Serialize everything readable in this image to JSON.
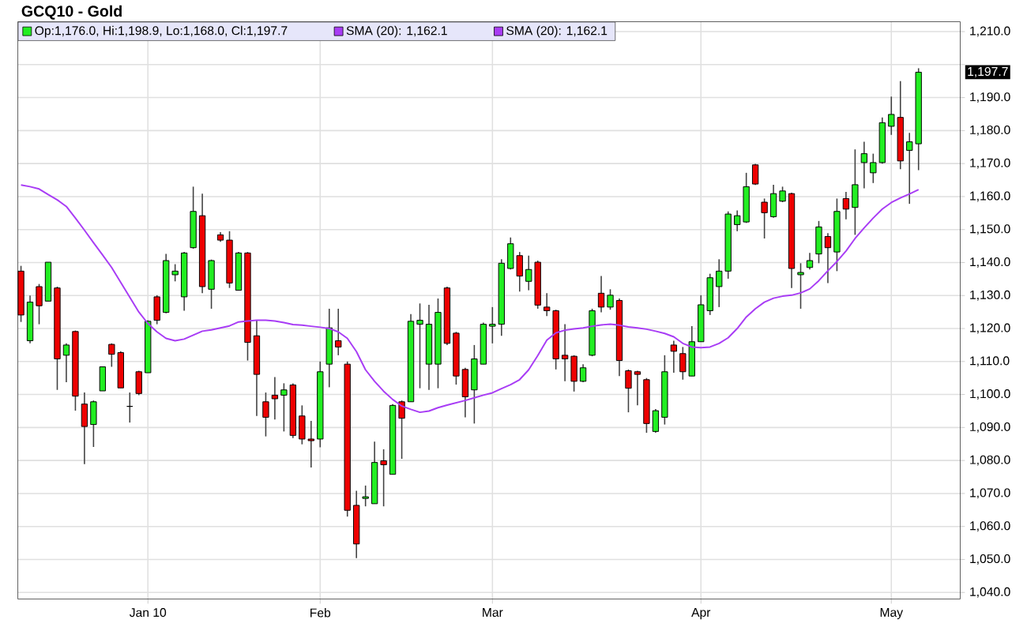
{
  "chart_data": {
    "type": "candlestick",
    "title": "GCQ10 - Gold",
    "categories": [
      null,
      null,
      null,
      null,
      null,
      null,
      null,
      null,
      null,
      null,
      null,
      null,
      null,
      null,
      "Jan 10",
      null,
      null,
      null,
      null,
      null,
      null,
      null,
      null,
      null,
      null,
      null,
      null,
      null,
      null,
      null,
      null,
      null,
      null,
      "Feb",
      null,
      null,
      null,
      null,
      null,
      null,
      null,
      null,
      null,
      null,
      null,
      null,
      null,
      null,
      null,
      null,
      null,
      null,
      "Mar",
      null,
      null,
      null,
      null,
      null,
      null,
      null,
      null,
      null,
      null,
      null,
      null,
      null,
      null,
      null,
      null,
      null,
      null,
      null,
      null,
      null,
      null,
      "Apr",
      null,
      null,
      null,
      null,
      null,
      null,
      null,
      null,
      null,
      null,
      null,
      null,
      null,
      null,
      null,
      null,
      null,
      null,
      null,
      null,
      "May",
      null,
      null,
      null
    ],
    "series": [
      {
        "name": "Op:1,176.0, Hi:1,198.9, Lo:1,168.0, Cl:1,197.7",
        "ohlc": [
          [
            1137.4,
            1139.0,
            1122.0,
            1124.1
          ],
          [
            1116.3,
            1130.0,
            1115.5,
            1128.0
          ],
          [
            1132.7,
            1133.5,
            1121.3,
            1126.9
          ],
          [
            1128.3,
            1140.1,
            1128.3,
            1140.1
          ],
          [
            1132.3,
            1132.7,
            1101.4,
            1110.8
          ],
          [
            1111.9,
            1115.5,
            1103.7,
            1115.0
          ],
          [
            1119.1,
            1119.4,
            1095.1,
            1099.5
          ],
          [
            1097.1,
            1100.6,
            1078.9,
            1090.3
          ],
          [
            1090.9,
            1098.2,
            1084.1,
            1097.8
          ],
          [
            1101.1,
            1108.4,
            1101.1,
            1108.4
          ],
          [
            1115.2,
            1115.5,
            1108.4,
            1112.2
          ],
          [
            1112.7,
            1113.1,
            1102.0,
            1102.0
          ],
          [
            1096.4,
            1100.6,
            1091.5,
            1096.4
          ],
          [
            1106.9,
            1107.2,
            1099.8,
            1100.3
          ],
          [
            1106.6,
            1122.5,
            1106.6,
            1122.2
          ],
          [
            1129.6,
            1130.1,
            1121.3,
            1122.5
          ],
          [
            1124.9,
            1142.6,
            1124.6,
            1140.6
          ],
          [
            1136.3,
            1139.5,
            1134.3,
            1137.4
          ],
          [
            1129.6,
            1143.2,
            1125.4,
            1142.9
          ],
          [
            1144.5,
            1163.0,
            1144.2,
            1155.5
          ],
          [
            1154.2,
            1160.9,
            1130.7,
            1132.7
          ],
          [
            1131.9,
            1140.9,
            1126.0,
            1140.6
          ],
          [
            1148.4,
            1149.2,
            1146.3,
            1146.8
          ],
          [
            1146.8,
            1149.5,
            1132.3,
            1133.8
          ],
          [
            1131.6,
            1143.2,
            1131.6,
            1142.9
          ],
          [
            1142.9,
            1143.2,
            1110.3,
            1115.8
          ],
          [
            1117.8,
            1122.5,
            1093.5,
            1106.1
          ],
          [
            1097.8,
            1100.6,
            1087.3,
            1093.1
          ],
          [
            1099.8,
            1105.3,
            1092.4,
            1098.7
          ],
          [
            1099.8,
            1103.4,
            1088.8,
            1101.4
          ],
          [
            1102.9,
            1103.4,
            1086.8,
            1087.6
          ],
          [
            1093.5,
            1096.7,
            1084.9,
            1086.5
          ],
          [
            1086.5,
            1092.0,
            1077.9,
            1086.0
          ],
          [
            1086.5,
            1110.0,
            1084.0,
            1106.9
          ],
          [
            1109.2,
            1126.0,
            1102.2,
            1120.2
          ],
          [
            1116.3,
            1126.0,
            1111.9,
            1114.4
          ],
          [
            1109.2,
            1110.0,
            1063.0,
            1064.9
          ],
          [
            1066.4,
            1070.8,
            1050.4,
            1054.7
          ],
          [
            1068.5,
            1072.4,
            1066.1,
            1069.0
          ],
          [
            1066.9,
            1085.7,
            1066.9,
            1079.4
          ],
          [
            1079.9,
            1083.4,
            1066.1,
            1078.7
          ],
          [
            1075.8,
            1097.1,
            1075.8,
            1096.7
          ],
          [
            1097.8,
            1098.2,
            1080.5,
            1092.8
          ],
          [
            1097.8,
            1124.4,
            1097.8,
            1122.2
          ],
          [
            1121.3,
            1127.6,
            1101.9,
            1122.5
          ],
          [
            1109.2,
            1127.2,
            1101.4,
            1121.3
          ],
          [
            1109.2,
            1129.1,
            1101.9,
            1124.9
          ],
          [
            1132.3,
            1132.7,
            1115.0,
            1115.5
          ],
          [
            1118.6,
            1119.0,
            1103.0,
            1105.6
          ],
          [
            1107.6,
            1108.1,
            1093.1,
            1099.3
          ],
          [
            1101.4,
            1115.0,
            1091.2,
            1110.8
          ],
          [
            1109.2,
            1121.8,
            1109.2,
            1121.3
          ],
          [
            1120.7,
            1126.5,
            1115.5,
            1121.3
          ],
          [
            1121.3,
            1141.0,
            1117.8,
            1139.8
          ],
          [
            1138.2,
            1147.6,
            1137.9,
            1145.7
          ],
          [
            1142.1,
            1143.2,
            1131.2,
            1135.9
          ],
          [
            1134.3,
            1142.1,
            1131.6,
            1137.9
          ],
          [
            1140.1,
            1140.6,
            1126.0,
            1127.1
          ],
          [
            1126.5,
            1130.7,
            1123.8,
            1125.4
          ],
          [
            1125.4,
            1125.7,
            1107.6,
            1110.8
          ],
          [
            1111.9,
            1121.3,
            1104.0,
            1110.8
          ],
          [
            1111.6,
            1111.9,
            1100.9,
            1104.0
          ],
          [
            1104.0,
            1109.2,
            1103.7,
            1108.1
          ],
          [
            1111.9,
            1126.0,
            1111.6,
            1125.4
          ],
          [
            1130.7,
            1135.9,
            1124.9,
            1126.5
          ],
          [
            1126.5,
            1131.9,
            1125.7,
            1130.1
          ],
          [
            1128.5,
            1129.1,
            1105.6,
            1110.3
          ],
          [
            1107.2,
            1107.6,
            1094.6,
            1101.9
          ],
          [
            1106.9,
            1107.2,
            1096.7,
            1106.1
          ],
          [
            1104.5,
            1105.0,
            1088.4,
            1091.2
          ],
          [
            1088.8,
            1095.6,
            1088.4,
            1095.1
          ],
          [
            1093.1,
            1111.9,
            1090.9,
            1106.9
          ],
          [
            1115.0,
            1116.3,
            1106.6,
            1113.1
          ],
          [
            1112.4,
            1114.4,
            1104.5,
            1106.9
          ],
          [
            1105.6,
            1120.7,
            1105.6,
            1116.0
          ],
          [
            1116.0,
            1130.1,
            1116.0,
            1127.2
          ],
          [
            1125.4,
            1136.6,
            1124.1,
            1135.4
          ],
          [
            1132.7,
            1141.0,
            1126.5,
            1137.4
          ],
          [
            1137.4,
            1155.5,
            1135.1,
            1154.7
          ],
          [
            1151.5,
            1155.8,
            1149.5,
            1154.2
          ],
          [
            1152.3,
            1167.2,
            1152.0,
            1163.0
          ],
          [
            1169.6,
            1169.9,
            1163.5,
            1163.8
          ],
          [
            1158.3,
            1159.4,
            1147.3,
            1155.1
          ],
          [
            1153.9,
            1163.6,
            1153.6,
            1160.9
          ],
          [
            1158.6,
            1163.0,
            1158.3,
            1161.7
          ],
          [
            1160.9,
            1161.2,
            1132.3,
            1138.2
          ],
          [
            1136.3,
            1139.8,
            1126.0,
            1137.0
          ],
          [
            1138.5,
            1142.9,
            1137.9,
            1140.6
          ],
          [
            1142.6,
            1152.6,
            1139.8,
            1150.8
          ],
          [
            1147.9,
            1148.9,
            1133.8,
            1144.5
          ],
          [
            1143.2,
            1159.4,
            1137.4,
            1155.5
          ],
          [
            1159.4,
            1161.4,
            1153.1,
            1156.2
          ],
          [
            1156.7,
            1174.3,
            1148.4,
            1163.6
          ],
          [
            1170.3,
            1176.6,
            1162.5,
            1173.0
          ],
          [
            1167.2,
            1173.0,
            1164.1,
            1170.3
          ],
          [
            1170.3,
            1184.0,
            1170.0,
            1182.4
          ],
          [
            1181.3,
            1190.3,
            1178.7,
            1184.9
          ],
          [
            1184.0,
            1195.0,
            1168.3,
            1170.8
          ],
          [
            1174.0,
            1179.3,
            1157.8,
            1176.6
          ],
          [
            1176.0,
            1198.9,
            1168.0,
            1197.7
          ]
        ],
        "colors": [
          "#ee0000",
          "#22ee22",
          "#ee0000",
          "#22ee22",
          "#ee0000",
          "#22ee22",
          "#ee0000",
          "#ee0000",
          "#22ee22",
          "#22ee22",
          "#ee0000",
          "#ee0000",
          "#000000",
          "#ee0000",
          "#22ee22",
          "#ee0000",
          "#22ee22",
          "#22ee22",
          "#22ee22",
          "#22ee22",
          "#ee0000",
          "#22ee22",
          "#ee0000",
          "#ee0000",
          "#22ee22",
          "#ee0000",
          "#ee0000",
          "#ee0000",
          "#ee0000",
          "#22ee22",
          "#ee0000",
          "#ee0000",
          "#ee0000",
          "#22ee22",
          "#22ee22",
          "#ee0000",
          "#ee0000",
          "#ee0000",
          "#22ee22",
          "#22ee22",
          "#ee0000",
          "#22ee22",
          "#ee0000",
          "#22ee22",
          "#22ee22",
          "#22ee22",
          "#22ee22",
          "#ee0000",
          "#ee0000",
          "#ee0000",
          "#22ee22",
          "#22ee22",
          "#22ee22",
          "#22ee22",
          "#22ee22",
          "#ee0000",
          "#22ee22",
          "#ee0000",
          "#ee0000",
          "#ee0000",
          "#ee0000",
          "#ee0000",
          "#22ee22",
          "#22ee22",
          "#ee0000",
          "#22ee22",
          "#ee0000",
          "#ee0000",
          "#ee0000",
          "#ee0000",
          "#22ee22",
          "#22ee22",
          "#ee0000",
          "#ee0000",
          "#22ee22",
          "#22ee22",
          "#22ee22",
          "#22ee22",
          "#22ee22",
          "#22ee22",
          "#22ee22",
          "#ee0000",
          "#ee0000",
          "#22ee22",
          "#22ee22",
          "#ee0000",
          "#22ee22",
          "#22ee22",
          "#22ee22",
          "#ee0000",
          "#22ee22",
          "#ee0000",
          "#22ee22",
          "#22ee22",
          "#22ee22",
          "#22ee22",
          "#22ee22",
          "#ee0000",
          "#22ee22",
          "#22ee22"
        ]
      },
      {
        "type": "line",
        "name": "SMA (20): 1,162.1",
        "color": "#a83cf5",
        "values": [
          1163.5,
          1163.0,
          1162.3,
          1160.6,
          1159.0,
          1157.0,
          1153.5,
          1149.8,
          1146.0,
          1142.3,
          1138.5,
          1134.0,
          1129.5,
          1125.0,
          1121.5,
          1119.0,
          1117.0,
          1116.3,
          1116.8,
          1118.0,
          1119.2,
          1119.6,
          1120.2,
          1120.8,
          1122.0,
          1122.3,
          1122.5,
          1122.5,
          1122.3,
          1121.8,
          1121.2,
          1121.0,
          1120.7,
          1120.4,
          1120.0,
          1119.0,
          1117.0,
          1113.0,
          1107.5,
          1104.0,
          1101.0,
          1098.5,
          1096.5,
          1095.5,
          1094.6,
          1095.0,
          1096.0,
          1096.8,
          1097.5,
          1098.2,
          1099.0,
          1099.8,
          1100.5,
          1101.8,
          1103.0,
          1104.5,
          1107.5,
          1111.8,
          1116.5,
          1118.7,
          1119.5,
          1119.9,
          1120.2,
          1120.7,
          1121.1,
          1121.3,
          1121.0,
          1120.5,
          1120.2,
          1119.8,
          1119.2,
          1118.5,
          1117.5,
          1115.5,
          1114.4,
          1114.2,
          1114.4,
          1115.5,
          1117.2,
          1120.0,
          1123.5,
          1126.0,
          1128.0,
          1129.2,
          1129.8,
          1130.1,
          1130.8,
          1132.0,
          1134.5,
          1137.5,
          1140.3,
          1143.5,
          1147.3,
          1150.5,
          1153.5,
          1156.2,
          1158.2,
          1159.6,
          1160.8,
          1162.1
        ]
      }
    ],
    "ylim": [
      1038,
      1213
    ],
    "yticks": [
      {
        "value": 1040,
        "label": "1,040.0"
      },
      {
        "value": 1050,
        "label": "1,050.0"
      },
      {
        "value": 1060,
        "label": "1,060.0"
      },
      {
        "value": 1070,
        "label": "1,070.0"
      },
      {
        "value": 1080,
        "label": "1,080.0"
      },
      {
        "value": 1090,
        "label": "1,090.0"
      },
      {
        "value": 1100,
        "label": "1,100.0"
      },
      {
        "value": 1110,
        "label": "1,110.0"
      },
      {
        "value": 1120,
        "label": "1,120.0"
      },
      {
        "value": 1130,
        "label": "1,130.0"
      },
      {
        "value": 1140,
        "label": "1,140.0"
      },
      {
        "value": 1150,
        "label": "1,150.0"
      },
      {
        "value": 1160,
        "label": "1,160.0"
      },
      {
        "value": 1170,
        "label": "1,170.0"
      },
      {
        "value": 1180,
        "label": "1,180.0"
      },
      {
        "value": 1190,
        "label": "1,190.0"
      },
      {
        "value": 1200,
        "label": null
      },
      {
        "value": 1210,
        "label": "1,210.0"
      }
    ],
    "grid": true,
    "legend": "top",
    "annotations": [
      "SMA (20): 1,162.1",
      "1,197.7"
    ]
  }
}
